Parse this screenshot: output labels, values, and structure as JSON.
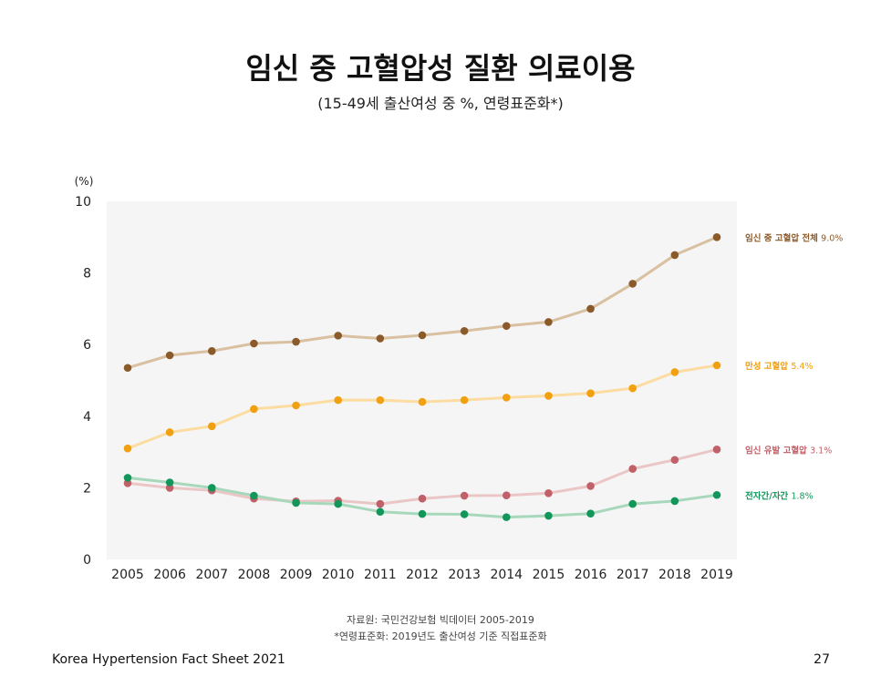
{
  "header": {
    "title": "임신 중 고혈압성 질환 의료이용",
    "subtitle": "(15-49세 출산여성 중 %, 연령표준화*)"
  },
  "chart_data": {
    "type": "line",
    "ylabel": "(%)",
    "ylim": [
      0,
      10
    ],
    "yticks": [
      "0",
      "2",
      "4",
      "6",
      "8",
      "10"
    ],
    "x": [
      "2005",
      "2006",
      "2007",
      "2008",
      "2009",
      "2010",
      "2011",
      "2012",
      "2013",
      "2014",
      "2015",
      "2016",
      "2017",
      "2018",
      "2019"
    ],
    "grid": false,
    "background": "#f5f5f5",
    "legend_placement": "right (end-of-line labels)",
    "series": [
      {
        "name": "임신 중 고혈압 전체",
        "end_label": "9.0%",
        "point_color": "#8b5a2b",
        "line_color": "#d9c0a0",
        "values": [
          5.35,
          5.7,
          5.82,
          6.03,
          6.08,
          6.25,
          6.17,
          6.26,
          6.38,
          6.52,
          6.63,
          7.0,
          7.7,
          8.5,
          9.0
        ]
      },
      {
        "name": "만성 고혈압",
        "end_label": "5.4%",
        "point_color": "#f0a010",
        "line_color": "#fcdca0",
        "values": [
          3.1,
          3.55,
          3.72,
          4.2,
          4.3,
          4.45,
          4.45,
          4.4,
          4.45,
          4.52,
          4.57,
          4.64,
          4.78,
          5.23,
          5.42
        ]
      },
      {
        "name": "임신 유발 고혈압",
        "end_label": "3.1%",
        "point_color": "#c06068",
        "line_color": "#ebc6c6",
        "values": [
          2.13,
          2.0,
          1.93,
          1.7,
          1.62,
          1.64,
          1.55,
          1.7,
          1.78,
          1.79,
          1.85,
          2.05,
          2.53,
          2.78,
          3.07
        ]
      },
      {
        "name": "전자간/자간",
        "end_label": "1.8%",
        "point_color": "#12965a",
        "line_color": "#a8d8bc",
        "values": [
          2.28,
          2.15,
          2.0,
          1.78,
          1.58,
          1.55,
          1.33,
          1.27,
          1.26,
          1.18,
          1.22,
          1.28,
          1.55,
          1.63,
          1.8
        ]
      }
    ]
  },
  "source": {
    "line1": "자료원: 국민건강보험 빅데이터 2005-2019",
    "line2": "*연령표준화: 2019년도 출산여성 기준 직접표준화"
  },
  "footer": {
    "left": "Korea Hypertension Fact Sheet 2021",
    "page_number": "27"
  }
}
